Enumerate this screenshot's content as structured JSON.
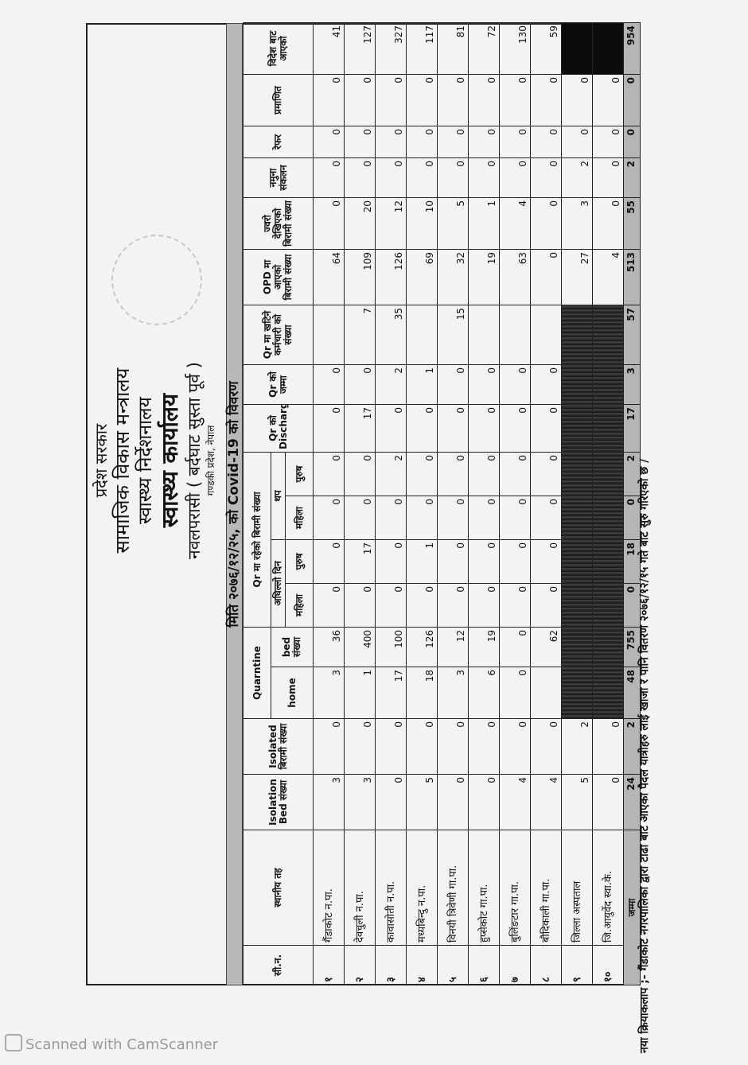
{
  "header": {
    "line1": "प्रदेश सरकार",
    "line2": "सामाजिक विकास मन्त्रालय",
    "line3": "स्वास्थ्य निर्देशनालय",
    "line4": "स्वास्थ्य कार्यालय",
    "line5": "नवलपरासी ( बर्दघाट सुस्ता पूर्व )",
    "line6": "गण्डकी प्रदेश, नेपाल"
  },
  "report_title": "मिति २०७६/१२/२५, को Covid-19 को विवरण",
  "columns": {
    "sn": "सी.न.",
    "local_level": "स्थानीय तह",
    "isolation_bed": "Isolation Bed संख्या",
    "isolated": "Isolated बिरामी संख्या",
    "quarantine": "Quarntine",
    "home": "home",
    "bed": "bed संख्या",
    "qr_patients": "Qr मा रहेको बिरामी संख्या",
    "previous_day": "अघिल्लो दिन",
    "added": "थप",
    "female": "महिला",
    "male": "पुरुष",
    "qr_discharge": "Qr को Discharge",
    "qr_total": "Qr को जम्मा",
    "qr_staff": "Qr मा खटिने कर्मचारी को संख्या",
    "opd": "OPD मा आएको बिरामी संख्या",
    "fever": "ज्वरो देखिएको बिरामी संख्या",
    "sample": "नमुना संकलन",
    "refer": "रेफर",
    "certified": "प्रमाणित",
    "abroad": "विदेश बाट आएको"
  },
  "rows": [
    {
      "sn": "१",
      "name": "गैंडाकोट न.पा.",
      "values": [
        "3",
        "0",
        "3",
        "36",
        "0",
        "0",
        "0",
        "0",
        "0",
        "0",
        "",
        "64",
        "0",
        "0",
        "0",
        "0",
        "41"
      ]
    },
    {
      "sn": "२",
      "name": "देवचुली न.पा.",
      "values": [
        "3",
        "0",
        "1",
        "400",
        "0",
        "17",
        "0",
        "0",
        "17",
        "0",
        "7",
        "109",
        "20",
        "0",
        "0",
        "0",
        "127"
      ]
    },
    {
      "sn": "३",
      "name": "कावासोती न.पा.",
      "values": [
        "0",
        "0",
        "17",
        "100",
        "0",
        "0",
        "0",
        "2",
        "0",
        "2",
        "35",
        "126",
        "12",
        "0",
        "0",
        "0",
        "327"
      ]
    },
    {
      "sn": "४",
      "name": "मध्यबिन्दु न.पा.",
      "values": [
        "5",
        "0",
        "18",
        "126",
        "0",
        "1",
        "0",
        "0",
        "0",
        "1",
        "",
        "69",
        "10",
        "0",
        "0",
        "0",
        "117"
      ]
    },
    {
      "sn": "५",
      "name": "विनयी त्रिवेणी गा.पा.",
      "values": [
        "0",
        "0",
        "3",
        "12",
        "0",
        "0",
        "0",
        "0",
        "0",
        "0",
        "15",
        "32",
        "5",
        "0",
        "0",
        "0",
        "81"
      ]
    },
    {
      "sn": "६",
      "name": "हुप्सेकोट गा.पा.",
      "values": [
        "0",
        "0",
        "6",
        "19",
        "0",
        "0",
        "0",
        "0",
        "0",
        "0",
        "",
        "19",
        "1",
        "0",
        "0",
        "0",
        "72"
      ]
    },
    {
      "sn": "७",
      "name": "बुलिंङटार गा.पा.",
      "values": [
        "4",
        "0",
        "0",
        "0",
        "0",
        "0",
        "0",
        "0",
        "0",
        "0",
        "",
        "63",
        "4",
        "0",
        "0",
        "0",
        "130"
      ]
    },
    {
      "sn": "८",
      "name": "बौदिकाली गा.पा.",
      "values": [
        "4",
        "0",
        "",
        "62",
        "0",
        "0",
        "0",
        "0",
        "0",
        "0",
        "",
        "0",
        "0",
        "0",
        "0",
        "0",
        "59"
      ]
    },
    {
      "sn": "९",
      "name": "जिल्ला अस्पताल",
      "values": [
        "5",
        "2",
        "",
        "",
        "",
        "",
        "",
        "",
        "",
        "",
        "",
        "27",
        "3",
        "2",
        "0",
        "0",
        ""
      ],
      "masked": [
        2,
        3,
        4,
        5,
        6,
        7,
        8,
        9,
        10,
        16
      ]
    },
    {
      "sn": "१०",
      "name": "जि.आयुर्वेद स्वा.के.",
      "values": [
        "0",
        "0",
        "",
        "",
        "",
        "",
        "",
        "",
        "",
        "",
        "",
        "4",
        "0",
        "0",
        "0",
        "0",
        ""
      ],
      "masked": [
        2,
        3,
        4,
        5,
        6,
        7,
        8,
        9,
        10,
        16
      ]
    }
  ],
  "total": {
    "label": "जम्मा",
    "values": [
      "24",
      "2",
      "48",
      "755",
      "0",
      "18",
      "0",
      "2",
      "17",
      "3",
      "57",
      "513",
      "55",
      "2",
      "0",
      "0",
      "954"
    ]
  },
  "footer_note": "नया क्रियाकलाप ;- गैंडाकोट नगरपालिका द्वारा टाढा बाट आएका पैदल यात्रीहरु लाई खाजा र पानि वितरण २०७६/१२/१५ गते बाट सुरु गरिएको छ /",
  "watermark": "Scanned with CamScanner",
  "colors": {
    "band": "#b9b9b9",
    "masked": "#2a2a2a",
    "paper": "#f3f3f1"
  }
}
